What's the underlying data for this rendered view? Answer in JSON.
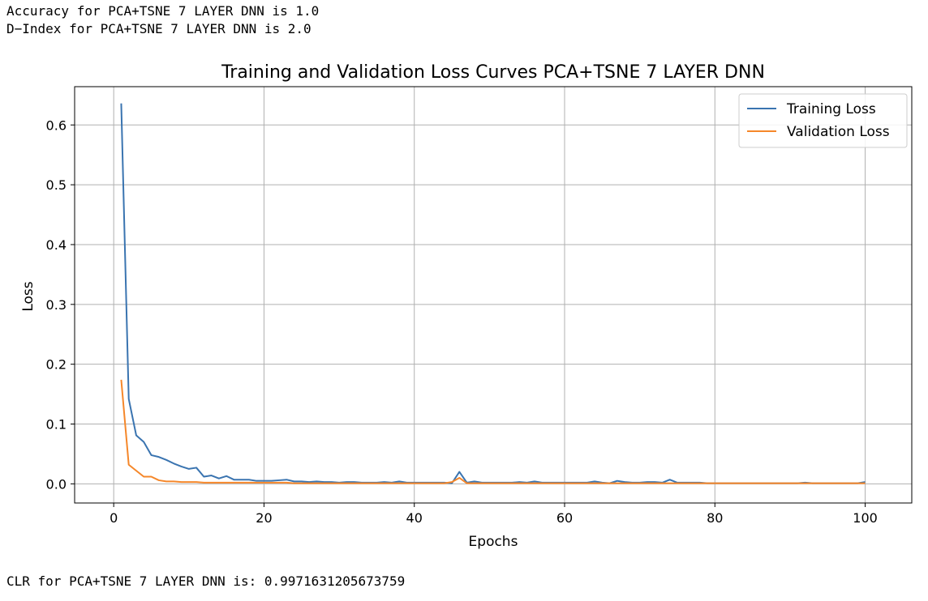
{
  "output": {
    "accuracy_line": "Accuracy for PCA+TSNE 7 LAYER DNN is 1.0",
    "dindex_line": "D−Index for PCA+TSNE 7 LAYER DNN is 2.0",
    "clr_line": "CLR for PCA+TSNE 7 LAYER DNN is: 0.9971631205673759"
  },
  "chart_data": {
    "type": "line",
    "title": "Training and Validation Loss Curves PCA+TSNE 7 LAYER DNN",
    "xlabel": "Epochs",
    "ylabel": "Loss",
    "xlim": [
      -5.2,
      106.2
    ],
    "ylim": [
      -0.032,
      0.664
    ],
    "xticks": [
      0,
      20,
      40,
      60,
      80,
      100
    ],
    "xtick_labels": [
      "0",
      "20",
      "40",
      "60",
      "80",
      "100"
    ],
    "yticks": [
      0.0,
      0.1,
      0.2,
      0.3,
      0.4,
      0.5,
      0.6
    ],
    "ytick_labels": [
      "0.0",
      "0.1",
      "0.2",
      "0.3",
      "0.4",
      "0.5",
      "0.6"
    ],
    "grid": true,
    "legend_position": "top-right",
    "x": [
      1,
      2,
      3,
      4,
      5,
      6,
      7,
      8,
      9,
      10,
      11,
      12,
      13,
      14,
      15,
      16,
      17,
      18,
      19,
      20,
      21,
      22,
      23,
      24,
      25,
      26,
      27,
      28,
      29,
      30,
      31,
      32,
      33,
      34,
      35,
      36,
      37,
      38,
      39,
      40,
      41,
      42,
      43,
      44,
      45,
      46,
      47,
      48,
      49,
      50,
      51,
      52,
      53,
      54,
      55,
      56,
      57,
      58,
      59,
      60,
      61,
      62,
      63,
      64,
      65,
      66,
      67,
      68,
      69,
      70,
      71,
      72,
      73,
      74,
      75,
      76,
      77,
      78,
      79,
      80,
      81,
      82,
      83,
      84,
      85,
      86,
      87,
      88,
      89,
      90,
      91,
      92,
      93,
      94,
      95,
      96,
      97,
      98,
      99,
      100
    ],
    "series": [
      {
        "name": "Training Loss",
        "color": "#3a74b0",
        "values": [
          0.636,
          0.142,
          0.081,
          0.07,
          0.048,
          0.045,
          0.04,
          0.034,
          0.029,
          0.025,
          0.027,
          0.012,
          0.014,
          0.009,
          0.013,
          0.007,
          0.007,
          0.007,
          0.005,
          0.005,
          0.005,
          0.006,
          0.007,
          0.004,
          0.004,
          0.003,
          0.004,
          0.003,
          0.003,
          0.002,
          0.003,
          0.003,
          0.002,
          0.002,
          0.002,
          0.003,
          0.002,
          0.004,
          0.002,
          0.002,
          0.002,
          0.002,
          0.002,
          0.002,
          0.001,
          0.02,
          0.002,
          0.004,
          0.002,
          0.002,
          0.002,
          0.002,
          0.002,
          0.003,
          0.002,
          0.004,
          0.002,
          0.002,
          0.002,
          0.002,
          0.002,
          0.002,
          0.002,
          0.004,
          0.002,
          0.001,
          0.005,
          0.003,
          0.002,
          0.002,
          0.003,
          0.003,
          0.002,
          0.007,
          0.002,
          0.002,
          0.002,
          0.002,
          0.001,
          0.001,
          0.001,
          0.001,
          0.001,
          0.001,
          0.001,
          0.001,
          0.001,
          0.001,
          0.001,
          0.001,
          0.001,
          0.002,
          0.001,
          0.001,
          0.001,
          0.001,
          0.001,
          0.001,
          0.001,
          0.003
        ]
      },
      {
        "name": "Validation Loss",
        "color": "#f5872a",
        "values": [
          0.174,
          0.032,
          0.022,
          0.012,
          0.012,
          0.006,
          0.004,
          0.004,
          0.003,
          0.003,
          0.003,
          0.002,
          0.002,
          0.002,
          0.002,
          0.002,
          0.002,
          0.002,
          0.002,
          0.002,
          0.002,
          0.002,
          0.002,
          0.001,
          0.001,
          0.001,
          0.001,
          0.001,
          0.001,
          0.001,
          0.001,
          0.001,
          0.001,
          0.001,
          0.001,
          0.001,
          0.001,
          0.001,
          0.001,
          0.001,
          0.001,
          0.001,
          0.001,
          0.001,
          0.003,
          0.01,
          0.001,
          0.001,
          0.001,
          0.001,
          0.001,
          0.001,
          0.001,
          0.001,
          0.001,
          0.001,
          0.001,
          0.001,
          0.001,
          0.001,
          0.001,
          0.001,
          0.001,
          0.001,
          0.001,
          0.001,
          0.001,
          0.001,
          0.001,
          0.001,
          0.001,
          0.001,
          0.001,
          0.001,
          0.001,
          0.001,
          0.001,
          0.001,
          0.001,
          0.001,
          0.001,
          0.001,
          0.001,
          0.001,
          0.001,
          0.001,
          0.001,
          0.001,
          0.001,
          0.001,
          0.001,
          0.001,
          0.001,
          0.001,
          0.001,
          0.001,
          0.001,
          0.001,
          0.001,
          0.001
        ]
      }
    ]
  }
}
